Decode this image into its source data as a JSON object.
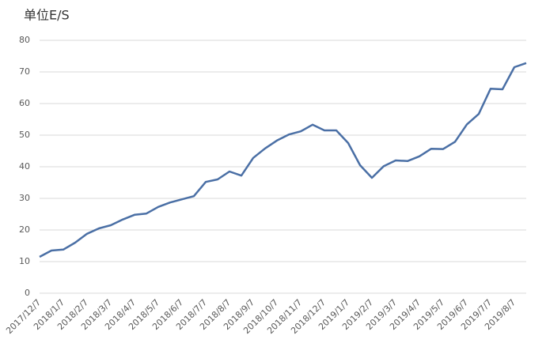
{
  "chart_data": {
    "type": "line",
    "title": "单位E/S",
    "categories": [
      "2017/12/7",
      null,
      "2018/1/7",
      null,
      "2018/2/7",
      null,
      "2018/3/7",
      null,
      "2018/4/7",
      null,
      "2018/5/7",
      null,
      "2018/6/7",
      null,
      "2018/7/7",
      null,
      "2018/8/7",
      null,
      "2018/9/7",
      null,
      "2018/10/7",
      null,
      "2018/11/7",
      null,
      "2018/12/7",
      null,
      "2019/1/7",
      null,
      "2019/2/7",
      null,
      "2019/3/7",
      null,
      "2019/4/7",
      null,
      "2019/5/7",
      null,
      "2019/6/7",
      null,
      "2019/7/7",
      null,
      "2019/8/7",
      null
    ],
    "series": [
      {
        "name": "E/S",
        "color": "#4a6fa5",
        "values": [
          11.5,
          13.5,
          13.8,
          16,
          18.8,
          20.5,
          21.5,
          23.3,
          24.8,
          25.2,
          27.3,
          28.7,
          29.7,
          30.7,
          35.2,
          36,
          38.5,
          37.2,
          42.8,
          45.8,
          48.3,
          50.2,
          51.2,
          53.3,
          51.5,
          51.5,
          47.5,
          40.5,
          36.5,
          40.2,
          42,
          41.8,
          43.3,
          45.7,
          45.6,
          47.9,
          53.4,
          56.7,
          64.7,
          64.5,
          71.5,
          72.8
        ]
      }
    ],
    "ylim": [
      0,
      80
    ],
    "yticks": [
      0,
      10,
      20,
      30,
      40,
      50,
      60,
      70,
      80
    ],
    "grid": true
  }
}
